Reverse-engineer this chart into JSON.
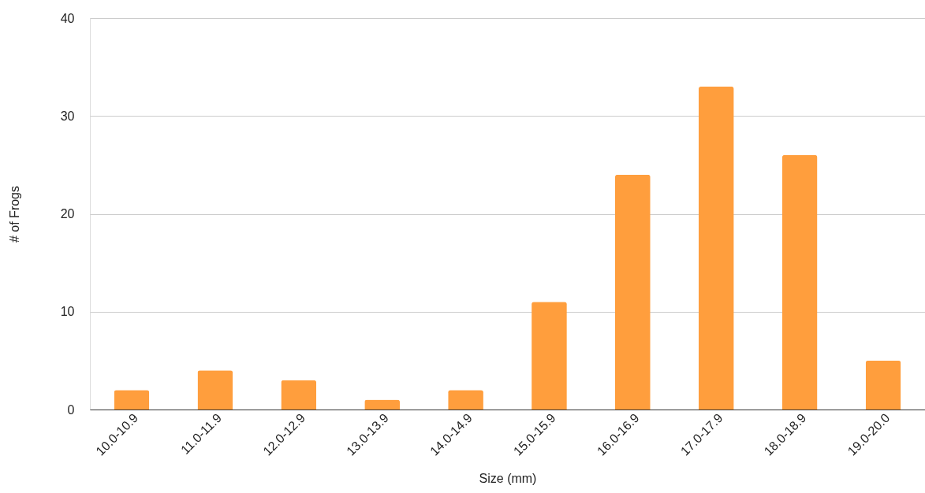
{
  "chart_data": {
    "type": "bar",
    "xlabel": "Size (mm)",
    "ylabel": "# of Frogs",
    "categories": [
      "10.0-10.9",
      "11.0-11.9",
      "12.0-12.9",
      "13.0-13.9",
      "14.0-14.9",
      "15.0-15.9",
      "16.0-16.9",
      "17.0-17.9",
      "18.0-18.9",
      "19.0-20.0"
    ],
    "values": [
      2,
      4,
      3,
      1,
      2,
      11,
      24,
      33,
      26,
      5
    ],
    "color": "#ff9e3d",
    "ylim": [
      0,
      40
    ],
    "yticks": [
      0,
      10,
      20,
      30,
      40
    ],
    "grid": "y"
  }
}
